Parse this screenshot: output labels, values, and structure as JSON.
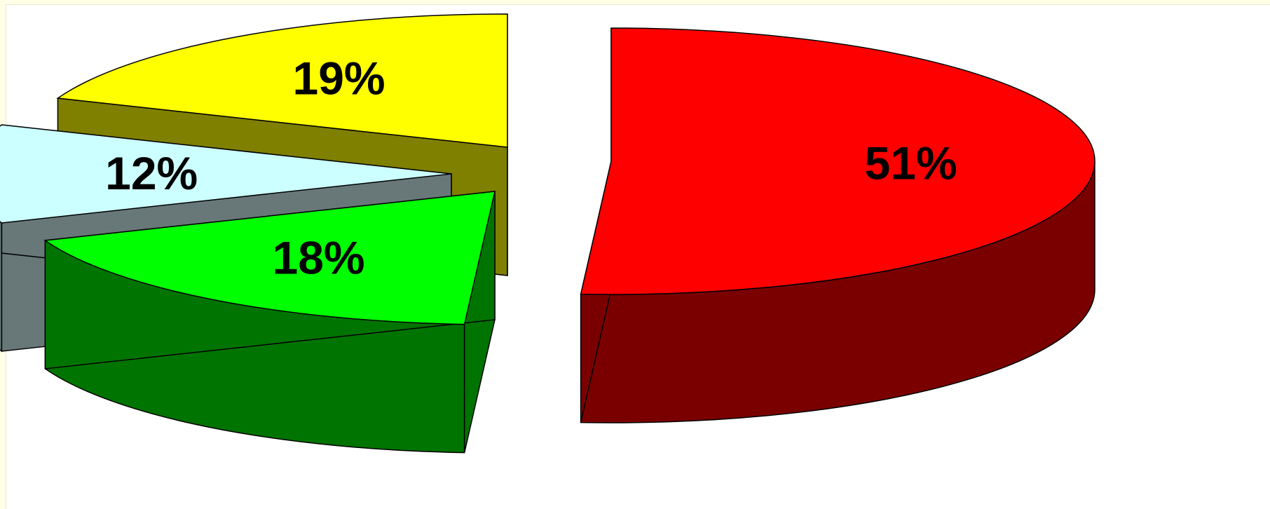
{
  "chart_data": {
    "type": "pie",
    "style": "3d-exploded",
    "title": "",
    "slices": [
      {
        "value": 51,
        "label": "51%",
        "color_top": "#FF0000",
        "color_side": "#7A0000"
      },
      {
        "value": 18,
        "label": "18%",
        "color_top": "#00FF00",
        "color_side": "#007400"
      },
      {
        "value": 12,
        "label": "12%",
        "color_top": "#CCFFFF",
        "color_side": "#687878"
      },
      {
        "value": 19,
        "label": "19%",
        "color_top": "#FFFF00",
        "color_side": "#7F7F00"
      }
    ],
    "legend": "none"
  }
}
